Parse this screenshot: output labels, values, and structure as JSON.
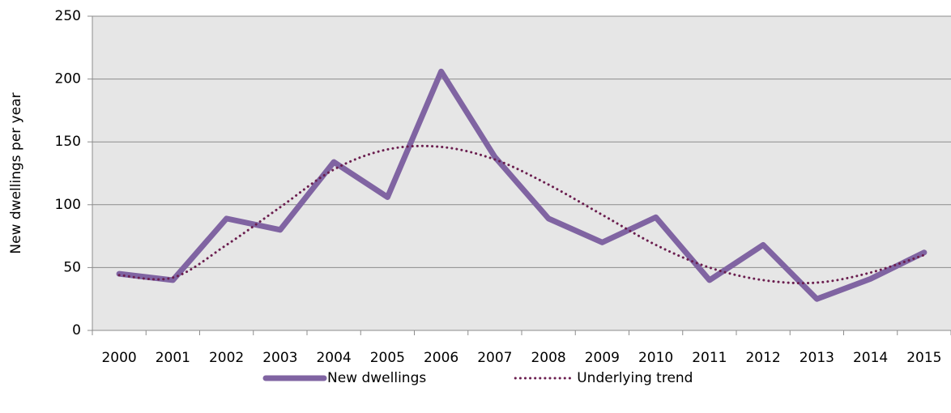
{
  "chart_data": {
    "type": "line",
    "y_label": "New dwellings per year",
    "categories": [
      "2000",
      "2001",
      "2002",
      "2003",
      "2004",
      "2005",
      "2006",
      "2007",
      "2008",
      "2009",
      "2010",
      "2011",
      "2012",
      "2013",
      "2014",
      "2015"
    ],
    "series": [
      {
        "name": "New dwellings",
        "color": "#8064a2",
        "style": "solid",
        "values": [
          45,
          40,
          89,
          80,
          134,
          106,
          206,
          138,
          89,
          70,
          90,
          40,
          68,
          25,
          41,
          62
        ]
      },
      {
        "name": "Underlying trend",
        "color": "#6b1e4f",
        "style": "dotted",
        "values": [
          44,
          42,
          68,
          98,
          128,
          144,
          146,
          136,
          116,
          92,
          68,
          50,
          40,
          38,
          46,
          60
        ]
      }
    ],
    "ylim": [
      0,
      250
    ],
    "yticks": [
      0,
      50,
      100,
      150,
      200,
      250
    ],
    "grid": true,
    "legend": "bottom"
  }
}
